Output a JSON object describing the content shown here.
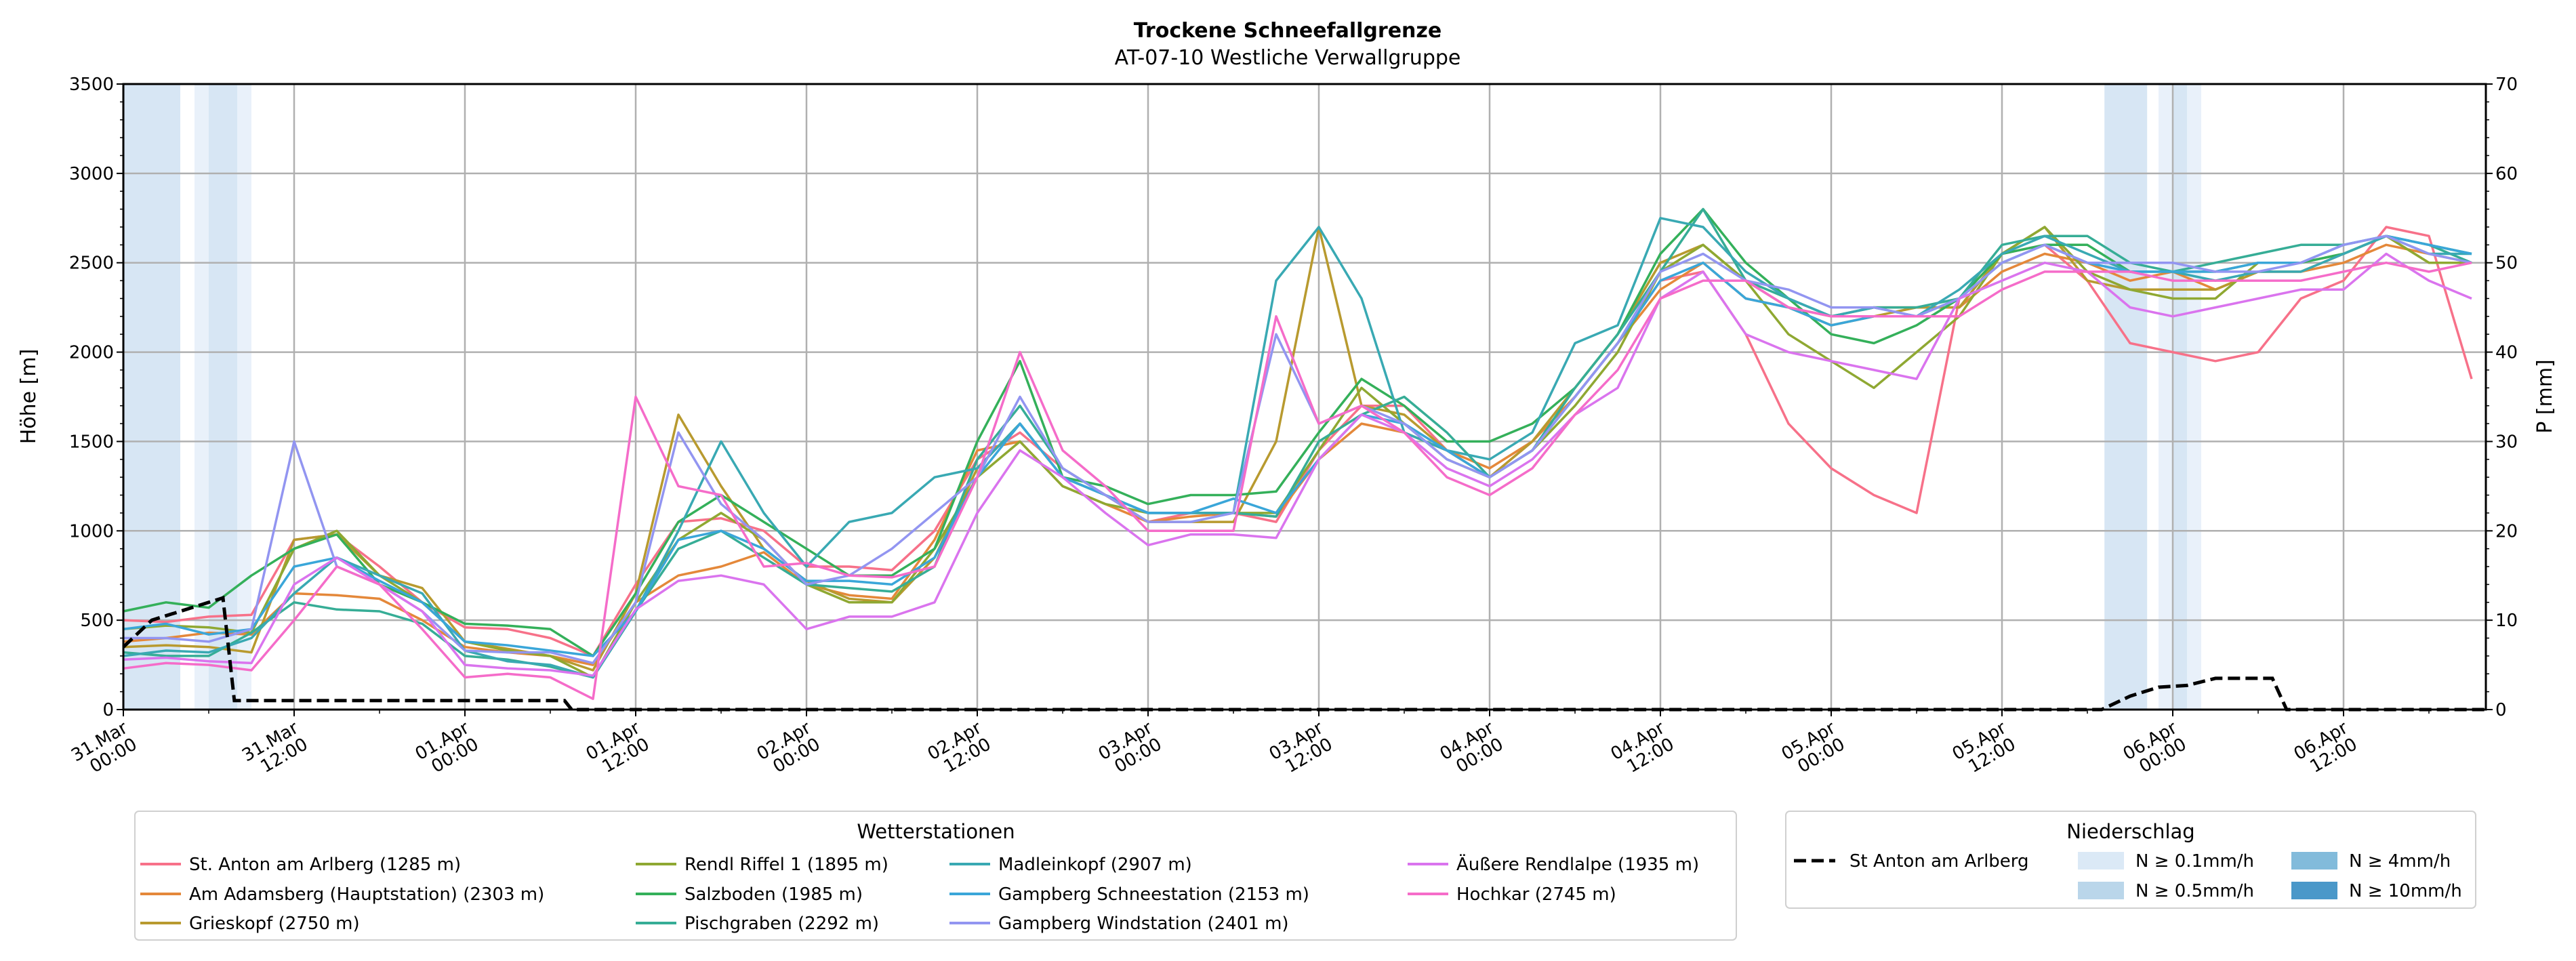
{
  "chart_data": {
    "type": "line",
    "title": "Trockene Schneefallgrenze",
    "subtitle": "AT-07-10 Westliche Verwallgruppe",
    "ylabel": "Höhe [m]",
    "ylabel_right": "P [mm]",
    "ylim": [
      0,
      3500
    ],
    "ylim_right": [
      0,
      70
    ],
    "yticks": [
      "0",
      "500",
      "1000",
      "1500",
      "2000",
      "2500",
      "3000",
      "3500"
    ],
    "yticks_right": [
      "0",
      "10",
      "20",
      "30",
      "40",
      "50",
      "60",
      "70"
    ],
    "xlim_hours": [
      0,
      166
    ],
    "xticks": [
      {
        "h": 0,
        "l1": "31.Mar",
        "l2": "00:00"
      },
      {
        "h": 12,
        "l1": "31.Mar",
        "l2": "12:00"
      },
      {
        "h": 24,
        "l1": "01.Apr",
        "l2": "00:00"
      },
      {
        "h": 36,
        "l1": "01.Apr",
        "l2": "12:00"
      },
      {
        "h": 48,
        "l1": "02.Apr",
        "l2": "00:00"
      },
      {
        "h": 60,
        "l1": "02.Apr",
        "l2": "12:00"
      },
      {
        "h": 72,
        "l1": "03.Apr",
        "l2": "00:00"
      },
      {
        "h": 84,
        "l1": "03.Apr",
        "l2": "12:00"
      },
      {
        "h": 96,
        "l1": "04.Apr",
        "l2": "00:00"
      },
      {
        "h": 108,
        "l1": "04.Apr",
        "l2": "12:00"
      },
      {
        "h": 120,
        "l1": "05.Apr",
        "l2": "00:00"
      },
      {
        "h": 132,
        "l1": "05.Apr",
        "l2": "12:00"
      },
      {
        "h": 144,
        "l1": "06.Apr",
        "l2": "00:00"
      },
      {
        "h": 156,
        "l1": "06.Apr",
        "l2": "12:00"
      }
    ],
    "grid": true,
    "x_step_hours": 3,
    "series": [
      {
        "name": "St. Anton am Arlberg (1285 m)",
        "color": "#f77189",
        "values": [
          500,
          490,
          520,
          530,
          950,
          980,
          800,
          600,
          460,
          450,
          400,
          300,
          700,
          1050,
          1070,
          1000,
          800,
          800,
          780,
          1000,
          1400,
          1550,
          1350,
          1200,
          1050,
          1100,
          1100,
          1050,
          1450,
          1700,
          1700,
          1450,
          1300,
          1500,
          1750,
          2050,
          2400,
          2450,
          2100,
          1600,
          1350,
          1200,
          1100,
          2300,
          2550,
          2600,
          2400,
          2050,
          2000,
          1950,
          2000,
          2300,
          2400,
          2700,
          2650,
          1850
        ]
      },
      {
        "name": "Am Adamsberg (Hauptstation) (2303 m)",
        "color": "#e4883a",
        "values": [
          380,
          400,
          430,
          420,
          650,
          640,
          620,
          500,
          350,
          320,
          300,
          250,
          600,
          750,
          800,
          880,
          700,
          640,
          620,
          950,
          1450,
          1500,
          1250,
          1150,
          1050,
          1080,
          1100,
          1080,
          1400,
          1600,
          1550,
          1450,
          1350,
          1500,
          1750,
          2050,
          2350,
          2500,
          2300,
          2250,
          2200,
          2250,
          2250,
          2250,
          2450,
          2550,
          2500,
          2400,
          2450,
          2350,
          2450,
          2450,
          2500,
          2600,
          2550,
          2500
        ]
      },
      {
        "name": "Grieskopf (2750 m)",
        "color": "#b89a2f",
        "values": [
          350,
          360,
          350,
          320,
          950,
          980,
          750,
          680,
          380,
          340,
          300,
          220,
          650,
          1650,
          1250,
          900,
          720,
          620,
          600,
          850,
          1350,
          1600,
          1300,
          1200,
          1050,
          1050,
          1050,
          1500,
          2700,
          1700,
          1650,
          1450,
          1300,
          1500,
          1800,
          2100,
          2500,
          2600,
          2400,
          2250,
          2150,
          2200,
          2250,
          2250,
          2550,
          2700,
          2400,
          2350,
          2350,
          2350,
          2450,
          2450,
          2550,
          2650,
          2500,
          2500
        ]
      },
      {
        "name": "Rendl Riffel 1 (1895 m)",
        "color": "#8fa832",
        "values": [
          450,
          470,
          460,
          430,
          900,
          1000,
          750,
          600,
          380,
          330,
          300,
          180,
          600,
          950,
          1100,
          950,
          700,
          600,
          600,
          900,
          1300,
          1500,
          1250,
          1150,
          1100,
          1100,
          1100,
          1100,
          1450,
          1800,
          1600,
          1400,
          1300,
          1450,
          1700,
          2000,
          2450,
          2600,
          2400,
          2100,
          1950,
          1800,
          2000,
          2200,
          2550,
          2700,
          2450,
          2350,
          2300,
          2300,
          2500,
          2500,
          2550,
          2650,
          2500,
          2500
        ]
      },
      {
        "name": "Salzboden (1985 m)",
        "color": "#34b05a",
        "values": [
          550,
          600,
          570,
          750,
          900,
          980,
          700,
          600,
          480,
          470,
          450,
          300,
          650,
          1050,
          1200,
          1050,
          900,
          750,
          750,
          900,
          1500,
          1950,
          1300,
          1250,
          1150,
          1200,
          1200,
          1220,
          1550,
          1850,
          1700,
          1500,
          1500,
          1600,
          1800,
          2100,
          2550,
          2800,
          2500,
          2300,
          2100,
          2050,
          2150,
          2300,
          2550,
          2600,
          2600,
          2450,
          2450,
          2450,
          2500,
          2500,
          2550,
          2650,
          2600,
          2550
        ]
      },
      {
        "name": "Pischgraben (2292 m)",
        "color": "#36ad96",
        "values": [
          320,
          300,
          300,
          430,
          600,
          560,
          550,
          480,
          300,
          280,
          240,
          180,
          550,
          900,
          1000,
          850,
          700,
          680,
          660,
          800,
          1400,
          1700,
          1350,
          1200,
          1100,
          1100,
          1100,
          1080,
          1500,
          1650,
          1750,
          1550,
          1300,
          1450,
          1800,
          2100,
          2450,
          2800,
          2400,
          2300,
          2200,
          2250,
          2250,
          2300,
          2600,
          2650,
          2650,
          2500,
          2450,
          2500,
          2550,
          2600,
          2600,
          2650,
          2600,
          2500
        ]
      },
      {
        "name": "Madleinkopf (2907 m)",
        "color": "#39a9b3",
        "values": [
          300,
          330,
          320,
          400,
          650,
          850,
          750,
          650,
          330,
          270,
          250,
          180,
          550,
          1000,
          1500,
          1100,
          800,
          1050,
          1100,
          1300,
          1350,
          1600,
          1300,
          1200,
          1100,
          1100,
          1100,
          2400,
          2700,
          2300,
          1550,
          1450,
          1400,
          1550,
          2050,
          2150,
          2750,
          2700,
          2450,
          2300,
          2200,
          2250,
          2200,
          2350,
          2550,
          2650,
          2550,
          2450,
          2450,
          2400,
          2450,
          2450,
          2550,
          2650,
          2550,
          2550
        ]
      },
      {
        "name": "Gampberg Schneestation (2153 m)",
        "color": "#3aa6d9",
        "values": [
          450,
          480,
          420,
          450,
          800,
          850,
          720,
          600,
          380,
          360,
          330,
          300,
          550,
          950,
          1000,
          900,
          720,
          720,
          700,
          850,
          1300,
          1600,
          1300,
          1200,
          1100,
          1100,
          1180,
          1100,
          1400,
          1650,
          1600,
          1450,
          1300,
          1450,
          1750,
          2050,
          2400,
          2500,
          2300,
          2250,
          2150,
          2200,
          2200,
          2300,
          2500,
          2600,
          2500,
          2450,
          2450,
          2450,
          2500,
          2500,
          2600,
          2650,
          2600,
          2550
        ]
      },
      {
        "name": "Gampberg Windstation (2401 m)",
        "color": "#9295f1",
        "values": [
          400,
          400,
          380,
          450,
          1500,
          800,
          700,
          550,
          330,
          320,
          320,
          260,
          600,
          1550,
          1150,
          950,
          700,
          750,
          900,
          1100,
          1300,
          1750,
          1350,
          1200,
          1050,
          1050,
          1100,
          2100,
          1600,
          1700,
          1600,
          1400,
          1300,
          1450,
          1750,
          2050,
          2450,
          2550,
          2400,
          2350,
          2250,
          2250,
          2200,
          2300,
          2500,
          2600,
          2500,
          2500,
          2500,
          2450,
          2450,
          2500,
          2600,
          2650,
          2550,
          2500
        ]
      },
      {
        "name": "Äußere Rendlalpe (1935 m)",
        "color": "#da74ee",
        "values": [
          280,
          290,
          270,
          260,
          700,
          850,
          700,
          550,
          250,
          230,
          220,
          190,
          560,
          720,
          750,
          700,
          450,
          520,
          520,
          600,
          1100,
          1450,
          1300,
          1100,
          920,
          980,
          980,
          960,
          1400,
          1650,
          1550,
          1350,
          1250,
          1400,
          1650,
          1800,
          2300,
          2450,
          2100,
          2000,
          1950,
          1900,
          1850,
          2300,
          2400,
          2500,
          2450,
          2250,
          2200,
          2250,
          2300,
          2350,
          2350,
          2550,
          2400,
          2300
        ]
      },
      {
        "name": "Hochkar (2745 m)",
        "color": "#f56cc9",
        "values": [
          230,
          260,
          250,
          220,
          500,
          800,
          700,
          450,
          180,
          200,
          180,
          60,
          1750,
          1250,
          1200,
          800,
          820,
          750,
          740,
          800,
          1300,
          2000,
          1450,
          1250,
          1000,
          1000,
          1000,
          2200,
          1600,
          1700,
          1550,
          1300,
          1200,
          1350,
          1650,
          1900,
          2300,
          2400,
          2400,
          2250,
          2200,
          2200,
          2200,
          2200,
          2350,
          2450,
          2450,
          2450,
          2400,
          2400,
          2400,
          2400,
          2450,
          2500,
          2450,
          2500
        ]
      }
    ],
    "precip_line": {
      "name": "St Anton am Arlberg",
      "color": "#000000",
      "points": [
        [
          0,
          7
        ],
        [
          2,
          10
        ],
        [
          4,
          11
        ],
        [
          6,
          12
        ],
        [
          7,
          12.5
        ],
        [
          7.8,
          1
        ],
        [
          8.5,
          1
        ],
        [
          31,
          1
        ],
        [
          31.5,
          0
        ],
        [
          139,
          0
        ],
        [
          141,
          1.5
        ],
        [
          143,
          2.5
        ],
        [
          145,
          2.7
        ],
        [
          147,
          3.5
        ],
        [
          151,
          3.5
        ],
        [
          152,
          0
        ],
        [
          166,
          0
        ]
      ]
    },
    "precip_bands": [
      {
        "from": 0,
        "to": 4,
        "level": "N ≥ 0.5mm/h"
      },
      {
        "from": 5,
        "to": 6,
        "level": "N ≥ 0.1mm/h"
      },
      {
        "from": 6,
        "to": 8,
        "level": "N ≥ 0.5mm/h"
      },
      {
        "from": 8,
        "to": 9,
        "level": "N ≥ 0.1mm/h"
      },
      {
        "from": 139.2,
        "to": 142.2,
        "level": "N ≥ 0.5mm/h"
      },
      {
        "from": 143,
        "to": 144,
        "level": "N ≥ 0.1mm/h"
      },
      {
        "from": 144,
        "to": 145,
        "level": "N ≥ 0.5mm/h"
      },
      {
        "from": 145,
        "to": 146,
        "level": "N ≥ 0.1mm/h"
      }
    ],
    "legend_stations_title": "Wetterstationen",
    "legend_precip_title": "Niederschlag",
    "precip_levels": [
      {
        "label": "N ≥ 0.1mm/h",
        "color": "#dbe9f6",
        "band": "#e9f1fa"
      },
      {
        "label": "N ≥ 0.5mm/h",
        "color": "#bad6ea",
        "band": "#d7e6f4"
      },
      {
        "label": "N ≥ 4mm/h",
        "color": "#82bbdb",
        "band": "#b5d4ea"
      },
      {
        "label": "N ≥ 10mm/h",
        "color": "#4a98c9",
        "band": "#8ab9dc"
      }
    ],
    "legend_placement": "bottom"
  }
}
